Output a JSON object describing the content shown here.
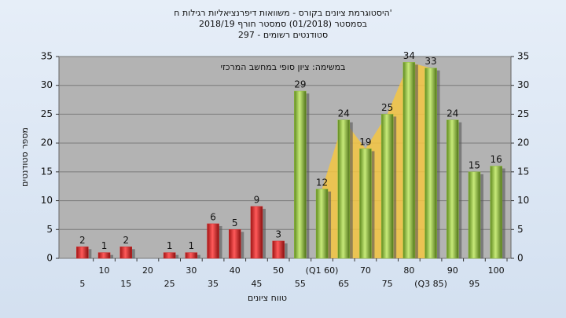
{
  "chart_data": {
    "type": "bar",
    "title": "'היסטוגרמת ציונים בקורס - משוואות דיפרנציאליות רגילות ח",
    "subtitle": "בסמסטר  (01/2018)  סמסטר חורף 2018/19",
    "subtitle2": "סטודנטים רשומים - 297",
    "annotation": "במשימה: ציון סופי במחשב המרכזי",
    "x_label": "טווח ציונים",
    "y_label": "מספר סטודנטים",
    "categories": [
      "5",
      "10",
      "15",
      "20",
      "25",
      "30",
      "35",
      "40",
      "45",
      "50",
      "55",
      "(Q1 60)",
      "65",
      "70",
      "75",
      "80",
      "(Q3 85)",
      "90",
      "95",
      "100"
    ],
    "values": [
      2,
      1,
      2,
      null,
      1,
      1,
      6,
      5,
      9,
      3,
      29,
      12,
      24,
      19,
      25,
      34,
      33,
      24,
      15,
      16
    ],
    "colors": [
      "#d42a2a",
      "#d42a2a",
      "#d42a2a",
      "#d42a2a",
      "#d42a2a",
      "#d42a2a",
      "#d42a2a",
      "#d42a2a",
      "#d42a2a",
      "#d42a2a",
      "#8fbf3a",
      "#8fbf3a",
      "#8fbf3a",
      "#8fbf3a",
      "#8fbf3a",
      "#8fbf3a",
      "#8fbf3a",
      "#8fbf3a",
      "#8fbf3a",
      "#8fbf3a"
    ],
    "ylim": [
      0,
      35
    ],
    "yticks": [
      0,
      5,
      10,
      15,
      20,
      25,
      30,
      35
    ],
    "y2lim": [
      0,
      35
    ],
    "y2ticks": [
      0,
      5,
      10,
      15,
      20,
      25,
      30,
      35
    ],
    "grid": true
  }
}
